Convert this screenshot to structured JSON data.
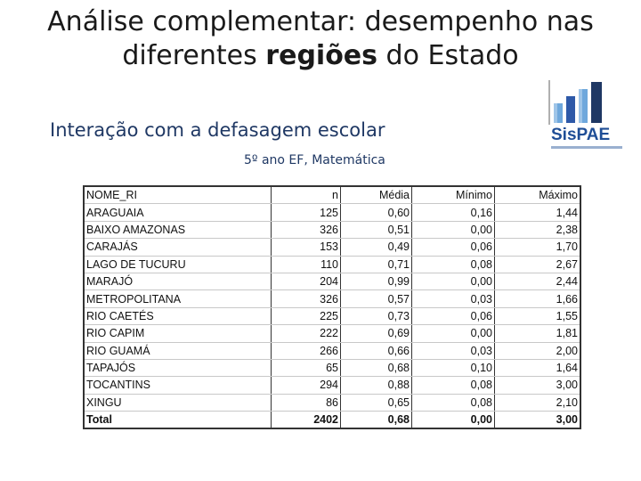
{
  "title": {
    "line1": "Análise complementar: desempenho nas",
    "line2_pre": "diferentes ",
    "line2_bold": "regiões",
    "line2_post": " do Estado"
  },
  "subtitle": "Interação com a defasagem escolar",
  "logo": {
    "text": "SisPAE",
    "colors": [
      "#2e59a8",
      "#6fa8dc",
      "#1f3864"
    ]
  },
  "grade_label": "5º ano EF, Matemática",
  "table": {
    "headers": [
      "NOME_RI",
      "n",
      "Média",
      "Mínimo",
      "Máximo"
    ],
    "rows": [
      [
        "ARAGUAIA",
        "125",
        "0,60",
        "0,16",
        "1,44"
      ],
      [
        "BAIXO AMAZONAS",
        "326",
        "0,51",
        "0,00",
        "2,38"
      ],
      [
        "CARAJÁS",
        "153",
        "0,49",
        "0,06",
        "1,70"
      ],
      [
        "LAGO DE TUCURU",
        "110",
        "0,71",
        "0,08",
        "2,67"
      ],
      [
        "MARAJÓ",
        "204",
        "0,99",
        "0,00",
        "2,44"
      ],
      [
        "METROPOLITANA",
        "326",
        "0,57",
        "0,03",
        "1,66"
      ],
      [
        "RIO CAETÉS",
        "225",
        "0,73",
        "0,06",
        "1,55"
      ],
      [
        "RIO CAPIM",
        "222",
        "0,69",
        "0,00",
        "1,81"
      ],
      [
        "RIO GUAMÁ",
        "266",
        "0,66",
        "0,03",
        "2,00"
      ],
      [
        "TAPAJÓS",
        "65",
        "0,68",
        "0,10",
        "1,64"
      ],
      [
        "TOCANTINS",
        "294",
        "0,88",
        "0,08",
        "3,00"
      ],
      [
        "XINGU",
        "86",
        "0,65",
        "0,08",
        "2,10"
      ]
    ],
    "total": [
      "Total",
      "2402",
      "0,68",
      "0,00",
      "3,00"
    ]
  }
}
